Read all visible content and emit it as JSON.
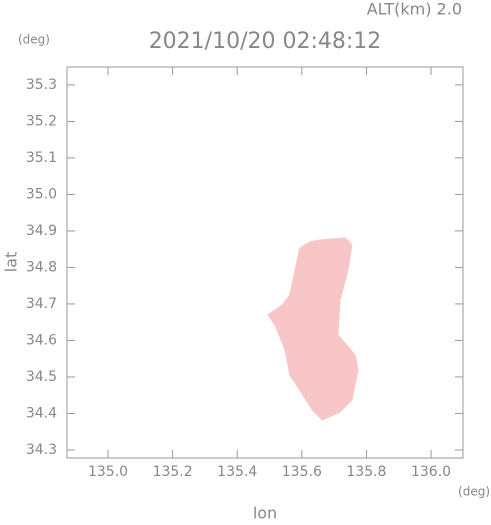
{
  "chart_data": {
    "type": "polygon",
    "title": "2021/10/20 02:48:12",
    "subtitle": "ALT(km) 2.0",
    "x_label": "lon",
    "y_label": "lat",
    "x_unit": "(deg)",
    "y_unit": "(deg)",
    "xlim": [
      134.873,
      136.099
    ],
    "ylim": [
      34.278,
      35.349
    ],
    "xticks": [
      {
        "value": 135,
        "label": "135.0"
      },
      135.2,
      135.4,
      135.6,
      135.8,
      {
        "value": 136,
        "label": "136.0"
      }
    ],
    "yticks": [
      34.3,
      34.4,
      34.5,
      34.6,
      34.7,
      34.8,
      34.9,
      {
        "value": 35,
        "label": "35.0"
      },
      35.1,
      35.2,
      35.3
    ],
    "series": [
      {
        "color": "#f8c6c6",
        "x": [
          135.656,
          135.734,
          135.755,
          135.743,
          135.718,
          135.712,
          135.765,
          135.774,
          135.755,
          135.718,
          135.663,
          135.632,
          135.594,
          135.563,
          135.548,
          135.517,
          135.495,
          135.539,
          135.563,
          135.579,
          135.594,
          135.625
        ],
        "values": [
          34.875,
          34.881,
          34.862,
          34.793,
          34.711,
          34.615,
          34.56,
          34.519,
          34.437,
          34.404,
          34.382,
          34.41,
          34.464,
          34.505,
          34.574,
          34.642,
          34.67,
          34.697,
          34.725,
          34.793,
          34.853,
          34.87
        ]
      }
    ]
  }
}
